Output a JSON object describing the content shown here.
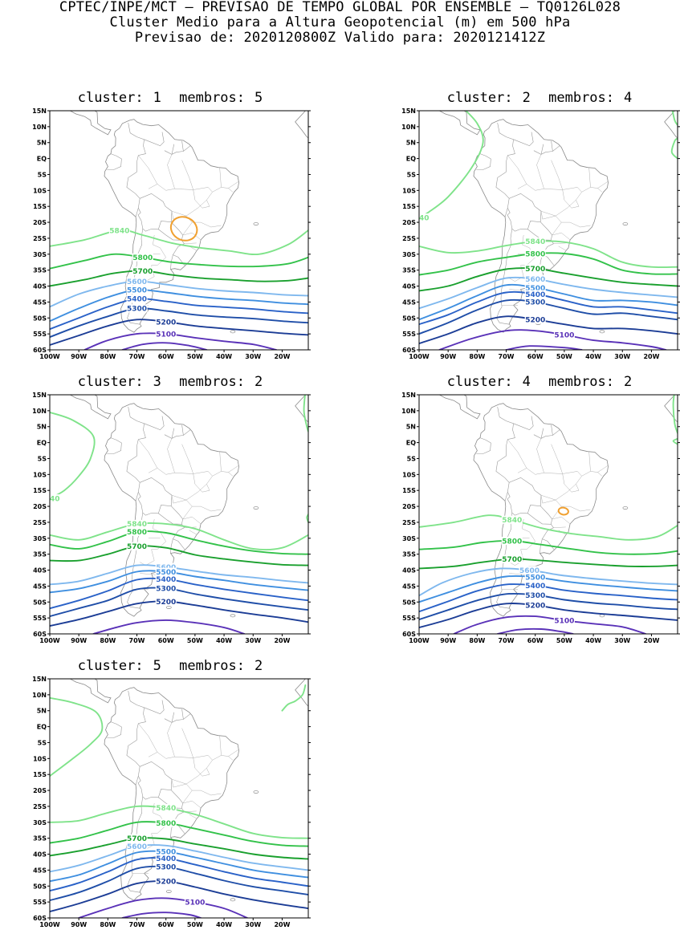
{
  "header": {
    "line1": "CPTEC/INPE/MCT – PREVISAO DE TEMPO GLOBAL POR ENSEMBLE – TQ0126L028",
    "line2": "Cluster Medio para a Altura Geopotencial (m) em 500 hPa",
    "line3": "Previsao de: 2020120800Z   Valido para: 2020121412Z"
  },
  "axes": {
    "lat_labels": [
      "15N",
      "10N",
      "5N",
      "EQ",
      "5S",
      "10S",
      "15S",
      "20S",
      "25S",
      "30S",
      "35S",
      "40S",
      "45S",
      "50S",
      "55S",
      "60S"
    ],
    "lon_labels": [
      "100W",
      "90W",
      "80W",
      "70W",
      "60W",
      "50W",
      "40W",
      "30W",
      "20W"
    ]
  },
  "colors": {
    "c5840": "#7fe38a",
    "c5800": "#33c24a",
    "c5700": "#1aa02e",
    "c5600": "#7fb8ee",
    "c5500": "#3f8fe0",
    "c5400": "#2a62c8",
    "c5300": "#1f4ea8",
    "c5200": "#1c3d96",
    "c5100": "#5a32b8",
    "high": "#f0a030",
    "coast": "#8a8a8a"
  },
  "panels": [
    {
      "cluster_label": "cluster:",
      "cluster": "1",
      "members_label": "membros:",
      "members": "5"
    },
    {
      "cluster_label": "cluster:",
      "cluster": "2",
      "members_label": "membros:",
      "members": "4"
    },
    {
      "cluster_label": "cluster:",
      "cluster": "3",
      "members_label": "membros:",
      "members": "2"
    },
    {
      "cluster_label": "cluster:",
      "cluster": "4",
      "members_label": "membros:",
      "members": "2"
    },
    {
      "cluster_label": "cluster:",
      "cluster": "5",
      "members_label": "membros:",
      "members": "2"
    }
  ],
  "contour_labels": [
    "5840",
    "5800",
    "5700",
    "5600",
    "5500",
    "5400",
    "5300",
    "5200",
    "5100"
  ]
}
